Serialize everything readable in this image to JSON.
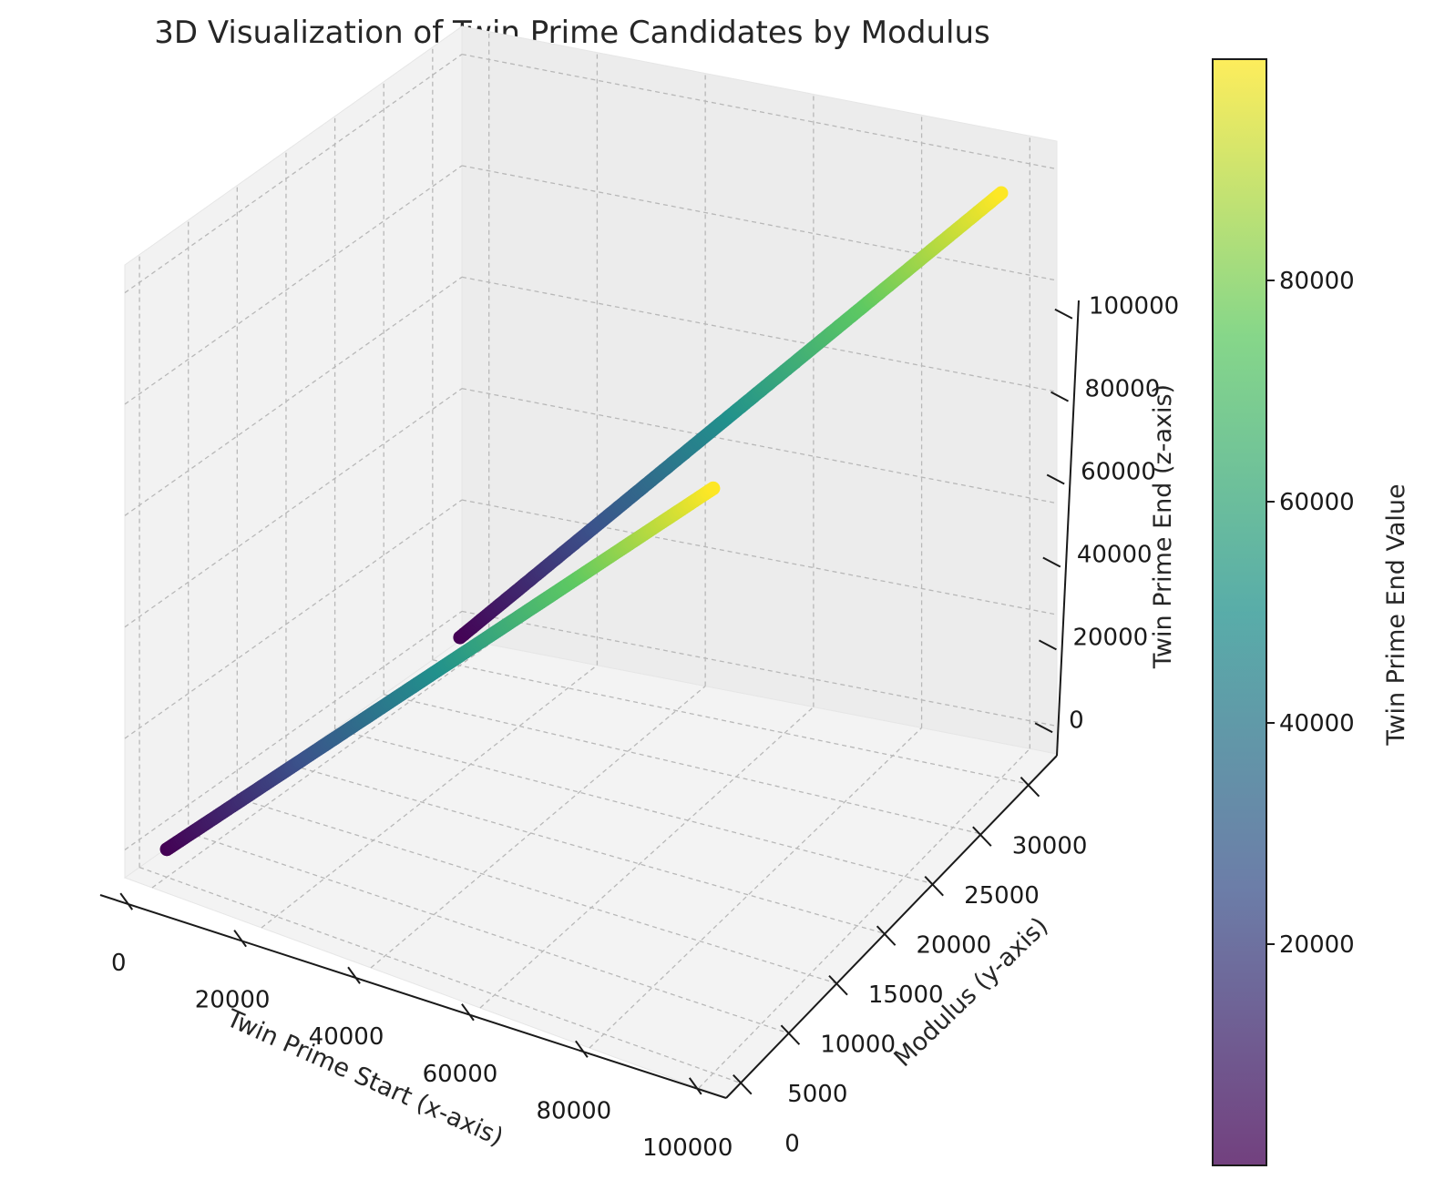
{
  "title": "3D Visualization of Twin Prime Candidates by Modulus",
  "chart_data": {
    "type": "scatter",
    "projection": "3d",
    "title": "3D Visualization of Twin Prime Candidates by Modulus",
    "xlabel": "Twin Prime Start (x-axis)",
    "ylabel": "Modulus (y-axis)",
    "zlabel": "Twin Prime End (z-axis)",
    "colorbar_label": "Twin Prime End Value",
    "colormap": "viridis",
    "grid": true,
    "x_ticks": [
      "0",
      "20000",
      "40000",
      "60000",
      "80000",
      "100000"
    ],
    "y_ticks": [
      "0",
      "5000",
      "10000",
      "15000",
      "20000",
      "25000",
      "30000"
    ],
    "z_ticks": [
      "0",
      "20000",
      "40000",
      "60000",
      "80000",
      "100000"
    ],
    "colorbar_ticks": [
      "20000",
      "40000",
      "60000",
      "80000"
    ],
    "xlim": [
      -5000,
      105000
    ],
    "ylim": [
      -1500,
      33000
    ],
    "zlim": [
      -5000,
      105000
    ],
    "color_range": [
      0,
      100000
    ],
    "series": [
      {
        "x_range": [
          3,
          99989
        ],
        "y": 2,
        "z_offset": 2
      },
      {
        "x_range": [
          3,
          99989
        ],
        "y": 6,
        "z_offset": 2
      },
      {
        "x_range": [
          3,
          99989
        ],
        "y": 30030,
        "z_offset": 2
      }
    ]
  }
}
